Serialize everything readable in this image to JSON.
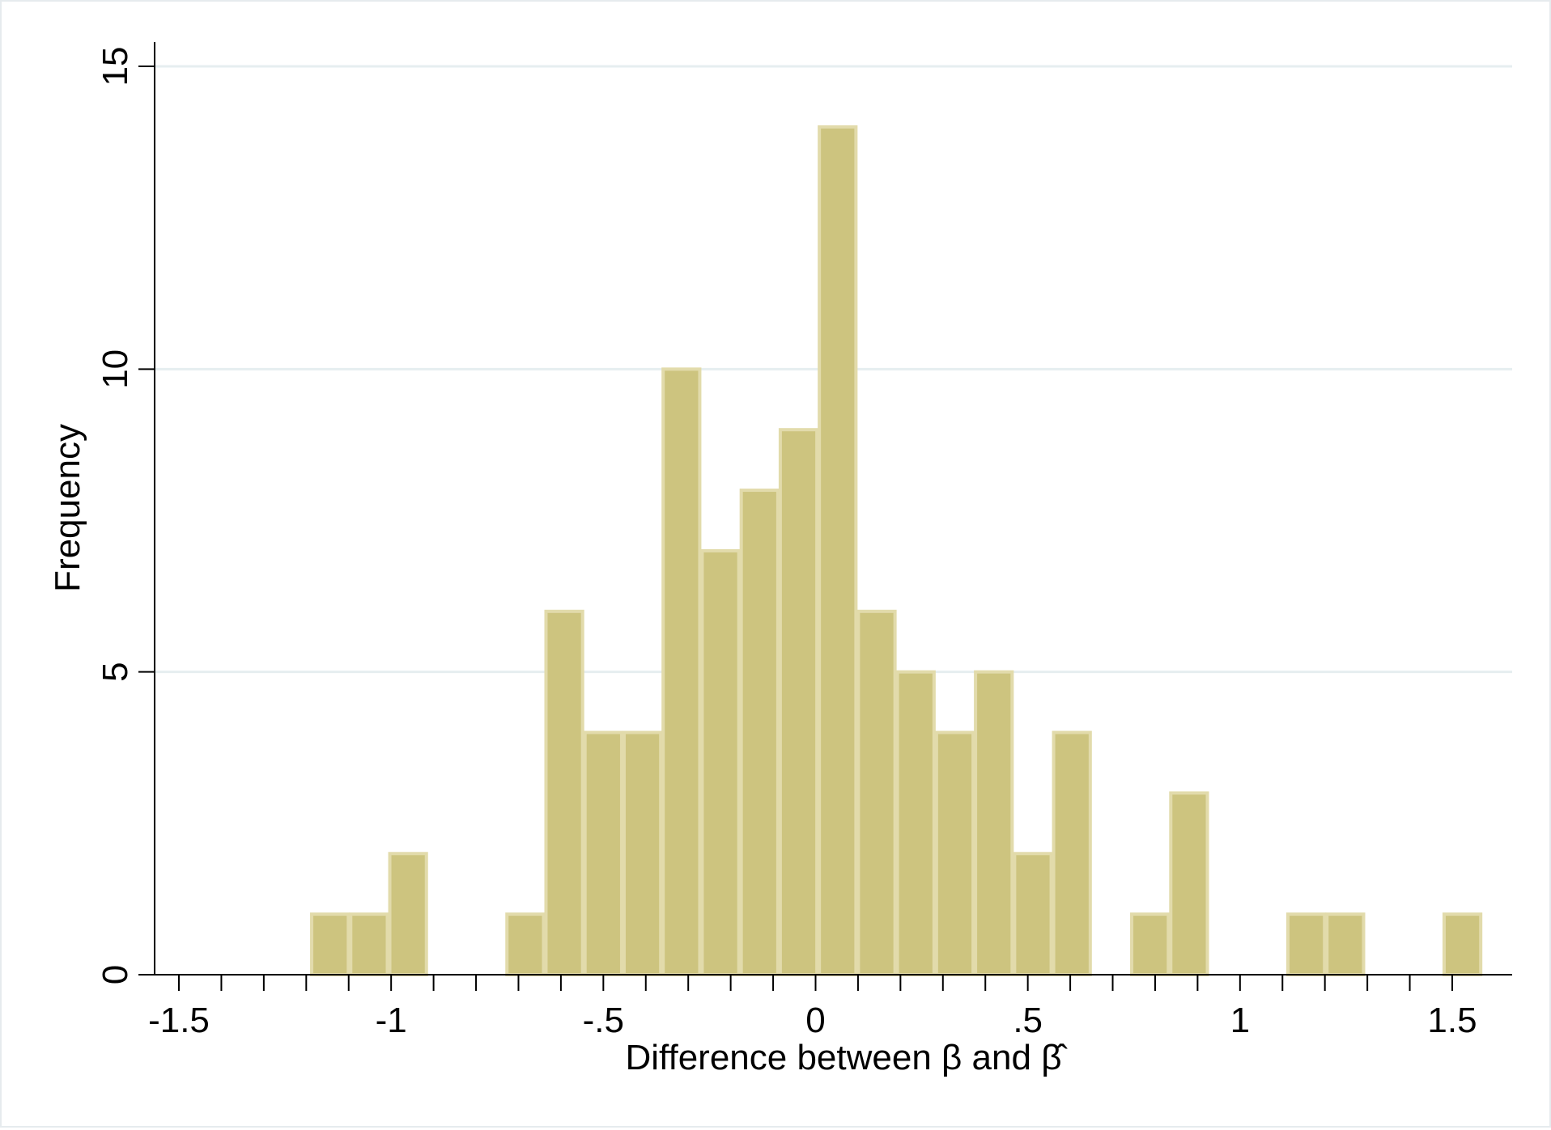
{
  "chart_data": {
    "type": "bar",
    "title": "",
    "xlabel": "Difference between β and β̂",
    "ylabel": "Frequency",
    "xlim": [
      -1.6,
      1.64
    ],
    "ylim": [
      0,
      15.5
    ],
    "x_ticks": [
      {
        "value": -1.5,
        "label": "-1.5"
      },
      {
        "value": -1,
        "label": "-1"
      },
      {
        "value": -0.5,
        "label": "-.5"
      },
      {
        "value": 0,
        "label": "0"
      },
      {
        "value": 0.5,
        "label": ".5"
      },
      {
        "value": 1,
        "label": "1"
      },
      {
        "value": 1.5,
        "label": "1.5"
      }
    ],
    "x_minor_ticks": [
      -1.4,
      -1.3,
      -1.2,
      -1.1,
      -0.9,
      -0.8,
      -0.7,
      -0.6,
      -0.4,
      -0.3,
      -0.2,
      -0.1,
      0.1,
      0.2,
      0.3,
      0.4,
      0.6,
      0.7,
      0.8,
      0.9,
      1.1,
      1.2,
      1.3,
      1.4
    ],
    "y_ticks": [
      {
        "value": 0,
        "label": "0"
      },
      {
        "value": 5,
        "label": "5"
      },
      {
        "value": 10,
        "label": "10"
      },
      {
        "value": 15,
        "label": "15"
      }
    ],
    "grid": true,
    "bin_width": 0.092,
    "bins": [
      {
        "start": -1.19,
        "count": 1
      },
      {
        "start": -1.098,
        "count": 1
      },
      {
        "start": -1.006,
        "count": 2
      },
      {
        "start": -0.914,
        "count": 0
      },
      {
        "start": -0.822,
        "count": 0
      },
      {
        "start": -0.73,
        "count": 1
      },
      {
        "start": -0.638,
        "count": 6
      },
      {
        "start": -0.546,
        "count": 4
      },
      {
        "start": -0.454,
        "count": 4
      },
      {
        "start": -0.362,
        "count": 10
      },
      {
        "start": -0.27,
        "count": 7
      },
      {
        "start": -0.178,
        "count": 8
      },
      {
        "start": -0.086,
        "count": 9
      },
      {
        "start": 0.006,
        "count": 14
      },
      {
        "start": 0.098,
        "count": 6
      },
      {
        "start": 0.19,
        "count": 5
      },
      {
        "start": 0.282,
        "count": 4
      },
      {
        "start": 0.374,
        "count": 5
      },
      {
        "start": 0.466,
        "count": 2
      },
      {
        "start": 0.558,
        "count": 4
      },
      {
        "start": 0.65,
        "count": 0
      },
      {
        "start": 0.742,
        "count": 1
      },
      {
        "start": 0.834,
        "count": 3
      },
      {
        "start": 0.926,
        "count": 0
      },
      {
        "start": 1.018,
        "count": 0
      },
      {
        "start": 1.11,
        "count": 1
      },
      {
        "start": 1.202,
        "count": 1
      },
      {
        "start": 1.294,
        "count": 0
      },
      {
        "start": 1.386,
        "count": 0
      },
      {
        "start": 1.478,
        "count": 1
      }
    ],
    "colors": {
      "bar_fill": "#cdc47f",
      "bar_stroke": "#e2dbab",
      "grid": "#e6eef0",
      "axis": "#000000"
    }
  }
}
